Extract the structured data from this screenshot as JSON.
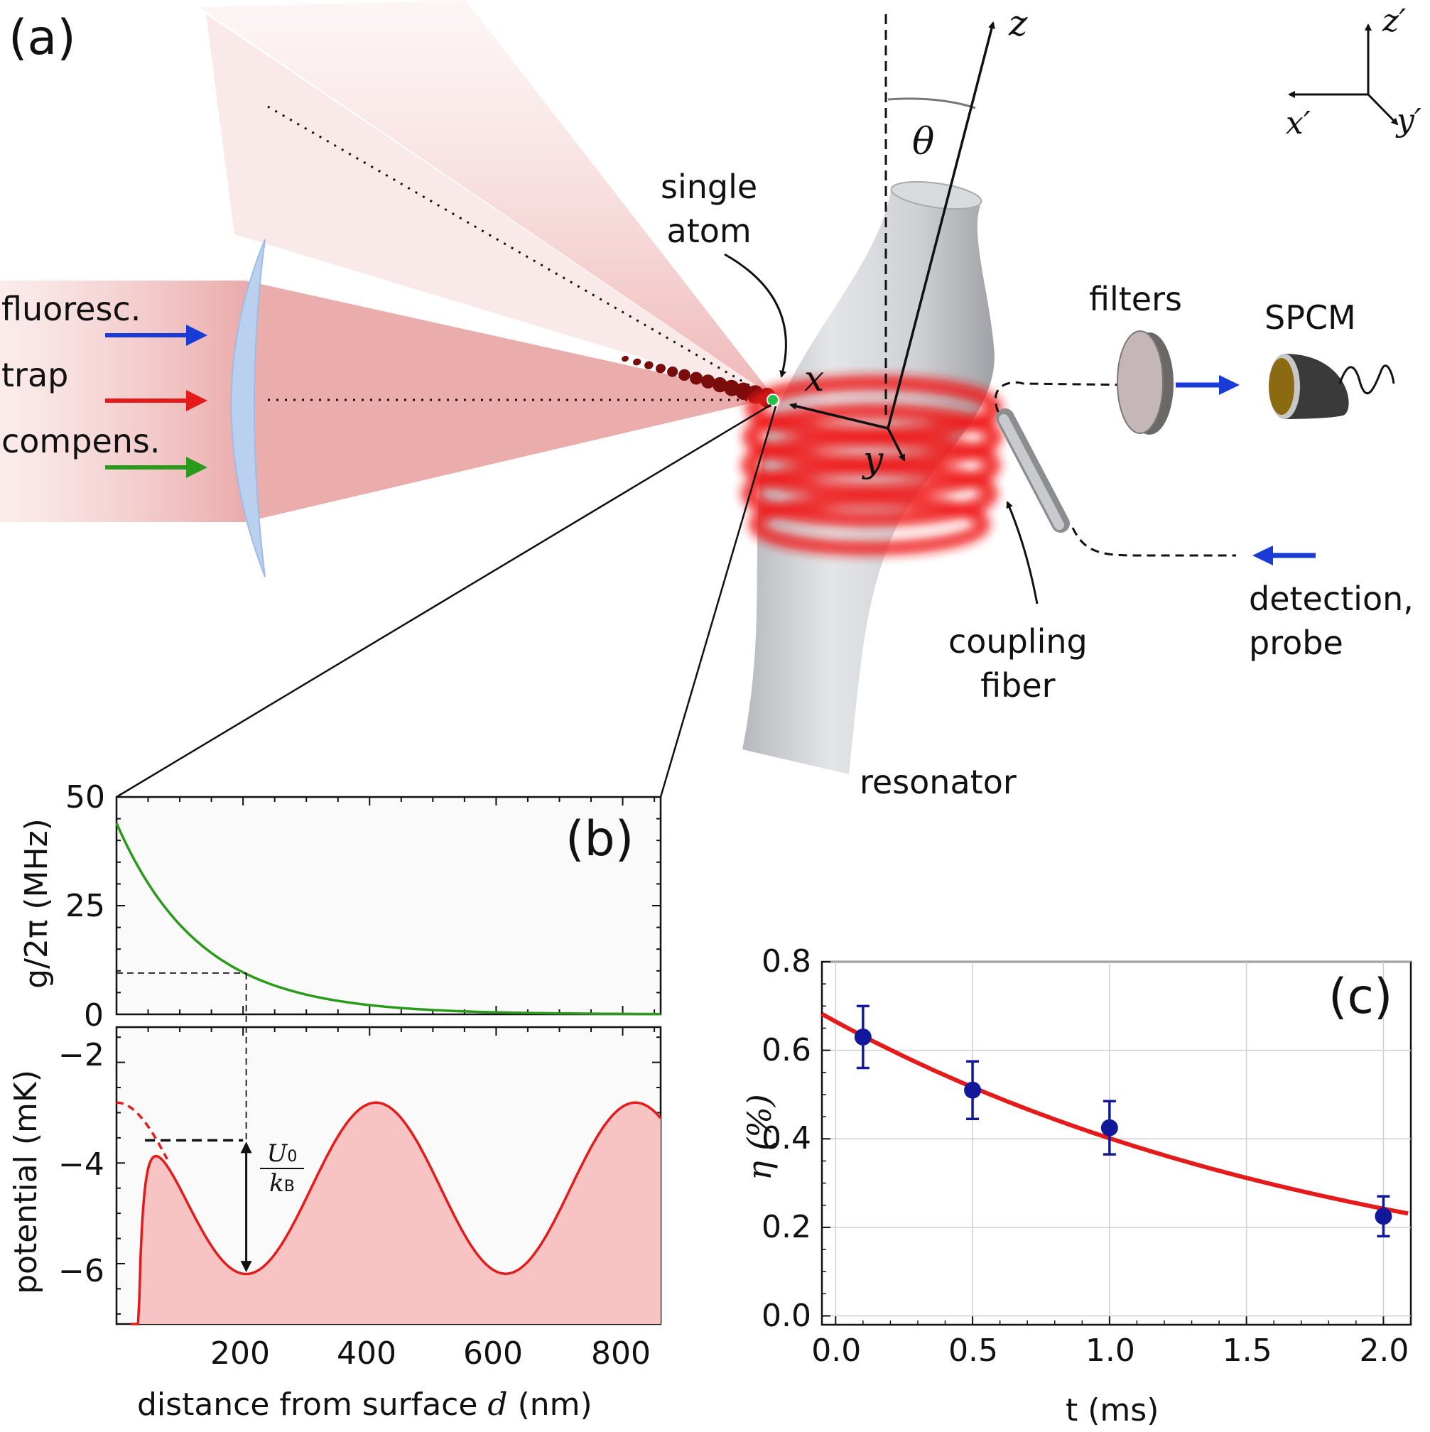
{
  "panel_a": {
    "label": "(a)",
    "beam_labels": [
      {
        "text": "fluoresc.",
        "color": "#1a3cd6"
      },
      {
        "text": "trap",
        "color": "#e51a1a"
      },
      {
        "text": "compens.",
        "color": "#2a9a1a"
      }
    ],
    "single_atom": "single\natom",
    "axes_local": {
      "x": "x",
      "y": "y",
      "z": "z",
      "theta": "θ"
    },
    "axes_lab": {
      "x": "x′",
      "y": "y′",
      "z": "z′"
    },
    "filters": "filters",
    "spcm": "SPCM",
    "coupling_fiber": "coupling\nfiber",
    "detection": "detection,\nprobe",
    "resonator": "resonator"
  },
  "panel_b": {
    "label": "(b)",
    "top": {
      "ylabel": "g/2π (MHz)",
      "yticks": [
        "50",
        "25",
        "0"
      ]
    },
    "bottom": {
      "ylabel": "potential (mK)",
      "yticks": [
        "−2",
        "−4",
        "−6"
      ],
      "annotation_num": "U",
      "annotation_num_sub": "0",
      "annotation_den": "k",
      "annotation_den_sub": "B"
    },
    "xticks": [
      "200",
      "400",
      "600",
      "800"
    ],
    "xlabel_prefix": "distance from surface ",
    "xlabel_var": "d",
    "xlabel_suffix": " (nm)"
  },
  "chart_data": [
    {
      "type": "line",
      "panel": "b-top",
      "xlabel": "distance from surface d (nm)",
      "ylabel": "g/2π (MHz)",
      "xlim": [
        0,
        860
      ],
      "ylim": [
        0,
        50
      ],
      "series": [
        {
          "color": "#2a9a1a",
          "x": [
            0,
            50,
            100,
            150,
            200,
            250,
            300,
            400,
            500,
            600,
            700,
            800,
            860
          ],
          "y": [
            44,
            31,
            22,
            15,
            9.5,
            6,
            3.8,
            1.6,
            0.6,
            0.2,
            0.1,
            0.05,
            0.03
          ]
        }
      ]
    },
    {
      "type": "line",
      "panel": "b-bottom",
      "xlabel": "distance from surface d (nm)",
      "ylabel": "potential (mK)",
      "xlim": [
        0,
        860
      ],
      "ylim": [
        -7.2,
        -1.3
      ],
      "series": [
        {
          "color": "#e51a1a",
          "x": [
            20,
            25,
            30,
            40,
            55,
            70,
            100,
            150,
            205,
            260,
            310,
            360,
            410,
            460,
            510,
            560,
            615,
            670,
            720,
            770,
            820,
            860
          ],
          "y": [
            -7.2,
            -5.0,
            -4.2,
            -3.7,
            -3.55,
            -3.6,
            -4.2,
            -5.4,
            -6.2,
            -5.5,
            -4.3,
            -3.2,
            -2.8,
            -3.3,
            -4.5,
            -5.6,
            -6.1,
            -5.4,
            -4.2,
            -3.2,
            -2.8,
            -3.1
          ]
        }
      ]
    },
    {
      "type": "scatter",
      "panel": "c",
      "xlabel": "t (ms)",
      "ylabel": "η (%)",
      "xlim": [
        -0.05,
        2.1
      ],
      "ylim": [
        -0.02,
        0.8
      ],
      "xticks": [
        "0.0",
        "0.5",
        "1.0",
        "1.5",
        "2.0"
      ],
      "yticks": [
        "0.0",
        "0.2",
        "0.4",
        "0.6",
        "0.8"
      ],
      "points": [
        {
          "x": 0.1,
          "y": 0.63,
          "err": 0.07
        },
        {
          "x": 0.5,
          "y": 0.51,
          "err": 0.065
        },
        {
          "x": 1.0,
          "y": 0.425,
          "err": 0.06
        },
        {
          "x": 2.0,
          "y": 0.225,
          "err": 0.045
        }
      ],
      "fit": {
        "color": "#e51a1a",
        "x0": -0.05,
        "x1": 2.1,
        "a": 0.665,
        "tau": 1.98
      }
    }
  ],
  "panel_c_label": "(c)",
  "colors": {
    "trap": "#e51a1a",
    "fit": "#e51a1a",
    "points": "#12189a",
    "green": "#2a9a1a",
    "blue": "#1a3cd6"
  }
}
